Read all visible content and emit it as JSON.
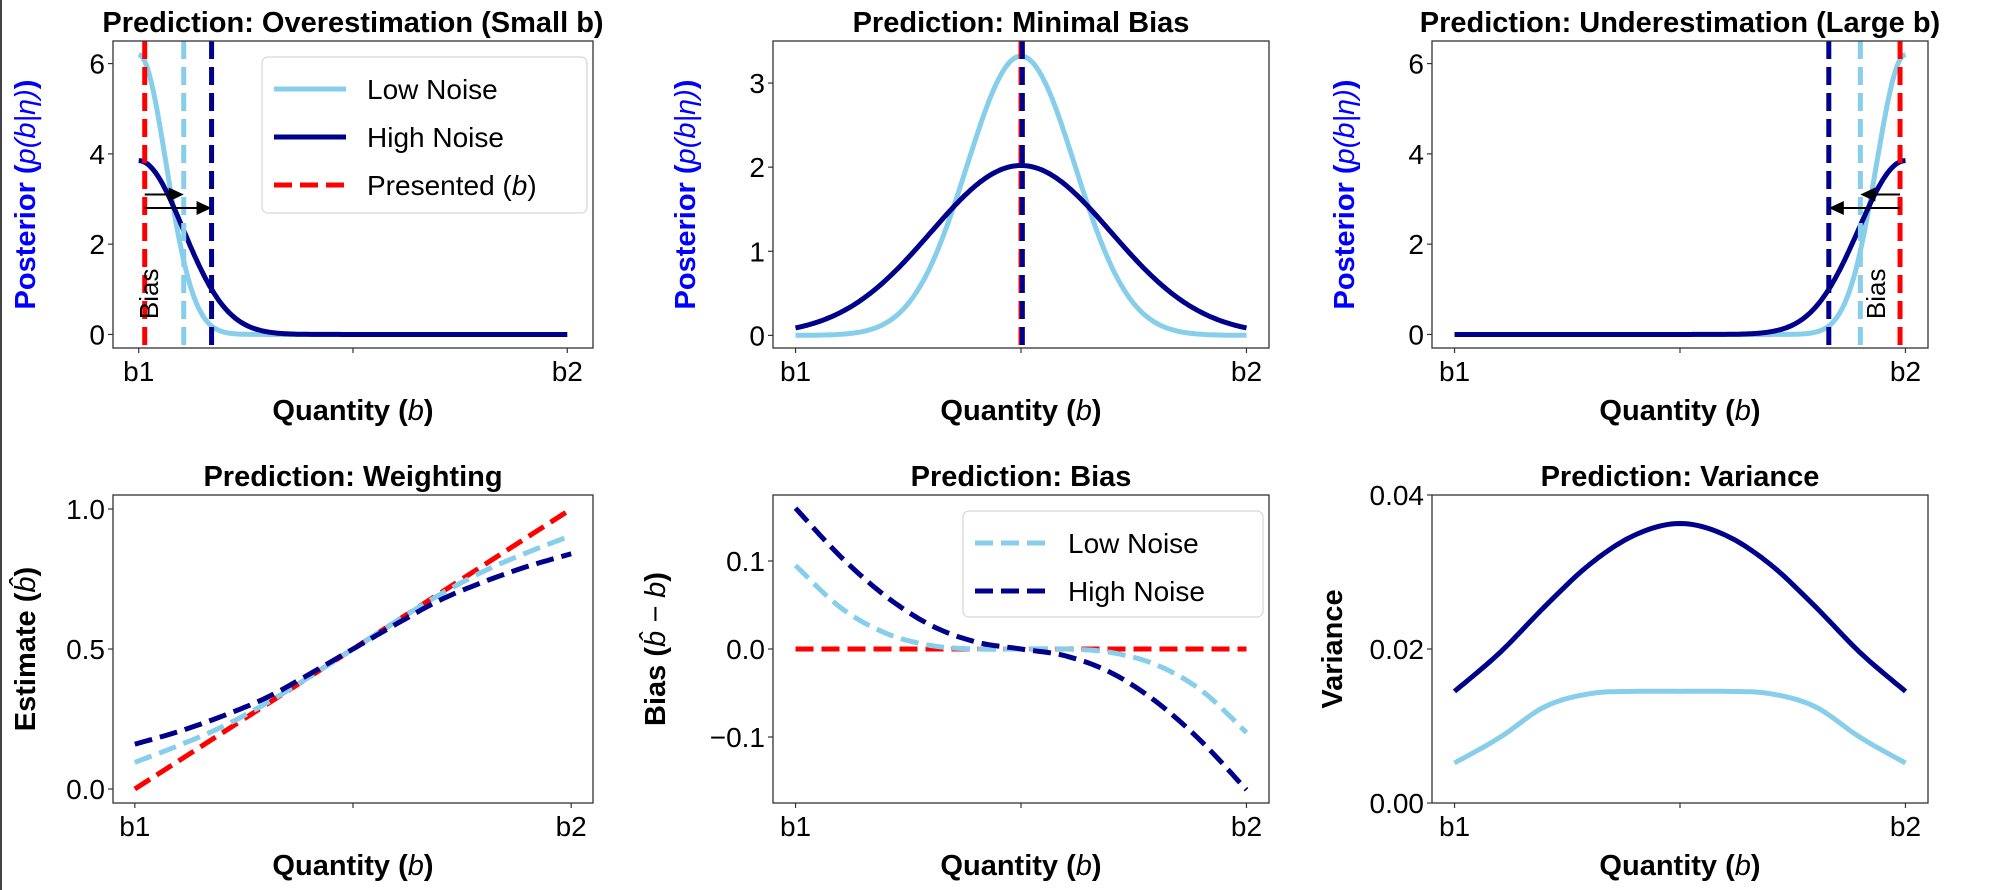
{
  "colors": {
    "low_noise": "#87CEEB",
    "high_noise": "#00008B",
    "presented": "#FF0000",
    "ylabel_posterior": "#0000FF",
    "text": "#000000"
  },
  "chart_data": [
    {
      "id": "overestimation",
      "type": "line",
      "title": "Prediction: Overestimation (Small b)",
      "xlabel": "Quantity (b)",
      "ylabel": "Posterior (p(b|η))",
      "x_tick_labels": [
        "b1",
        "",
        "b2"
      ],
      "x_ticks": [
        0,
        0.5,
        1
      ],
      "xlim": [
        -0.06,
        1.06
      ],
      "ylim": [
        -0.3,
        6.5
      ],
      "y_ticks": [
        0,
        2,
        4,
        6
      ],
      "y_tick_labels": [
        "0",
        "2",
        "4",
        "6"
      ],
      "legend": {
        "position": "top-right",
        "entries": [
          "Low Noise",
          "High Noise",
          "Presented (b)"
        ]
      },
      "series": [
        {
          "name": "Low Noise",
          "style": "solid",
          "color_key": "low_noise",
          "kind": "halfgauss",
          "center": 0,
          "peak": 6.2,
          "sigma": 0.0643,
          "side": "right"
        },
        {
          "name": "High Noise",
          "style": "solid",
          "color_key": "high_noise",
          "kind": "halfgauss",
          "center": 0,
          "peak": 3.85,
          "sigma": 0.1036,
          "side": "right"
        }
      ],
      "vlines": [
        {
          "name": "Presented (b)",
          "x": 0.014,
          "color_key": "presented"
        },
        {
          "name": "Low Noise estimate",
          "x": 0.105,
          "color_key": "low_noise"
        },
        {
          "name": "High Noise estimate",
          "x": 0.17,
          "color_key": "high_noise"
        }
      ],
      "arrows": [
        {
          "from": 0.014,
          "to": 0.105,
          "y": 3.1
        },
        {
          "from": 0.014,
          "to": 0.17,
          "y": 2.8
        }
      ],
      "annotation": {
        "text": "Bias",
        "x": 0.045,
        "y": 0.9,
        "rotation": -90
      }
    },
    {
      "id": "minimal-bias",
      "type": "line",
      "title": "Prediction: Minimal Bias",
      "xlabel": "Quantity (b)",
      "ylabel": "Posterior (p(b|η))",
      "x_tick_labels": [
        "b1",
        "",
        "b2"
      ],
      "x_ticks": [
        0,
        0.5,
        1
      ],
      "xlim": [
        -0.05,
        1.05
      ],
      "ylim": [
        -0.15,
        3.5
      ],
      "y_ticks": [
        0,
        1,
        2,
        3
      ],
      "y_tick_labels": [
        "0",
        "1",
        "2",
        "3"
      ],
      "series": [
        {
          "name": "Low Noise",
          "style": "solid",
          "color_key": "low_noise",
          "kind": "gauss",
          "center": 0.5,
          "peak": 3.32,
          "sigma": 0.12
        },
        {
          "name": "High Noise",
          "style": "solid",
          "color_key": "high_noise",
          "kind": "gauss",
          "center": 0.5,
          "peak": 2.02,
          "sigma": 0.2
        }
      ],
      "vlines": [
        {
          "name": "Presented (b)",
          "x": 0.5,
          "color_key": "presented"
        },
        {
          "name": "High Noise estimate",
          "x": 0.503,
          "color_key": "high_noise"
        }
      ]
    },
    {
      "id": "underestimation",
      "type": "line",
      "title": "Prediction: Underestimation (Large b)",
      "xlabel": "Quantity (b)",
      "ylabel": "Posterior (p(b|η))",
      "x_tick_labels": [
        "b1",
        "",
        "b2"
      ],
      "x_ticks": [
        0,
        0.5,
        1
      ],
      "xlim": [
        -0.05,
        1.05
      ],
      "ylim": [
        -0.3,
        6.5
      ],
      "y_ticks": [
        0,
        2,
        4,
        6
      ],
      "y_tick_labels": [
        "0",
        "2",
        "4",
        "6"
      ],
      "series": [
        {
          "name": "Low Noise",
          "style": "solid",
          "color_key": "low_noise",
          "kind": "halfgauss",
          "center": 1,
          "peak": 6.2,
          "sigma": 0.0643,
          "side": "left"
        },
        {
          "name": "High Noise",
          "style": "solid",
          "color_key": "high_noise",
          "kind": "halfgauss",
          "center": 1,
          "peak": 3.85,
          "sigma": 0.1036,
          "side": "left"
        }
      ],
      "vlines": [
        {
          "name": "Presented (b)",
          "x": 0.988,
          "color_key": "presented"
        },
        {
          "name": "Low Noise estimate",
          "x": 0.9,
          "color_key": "low_noise"
        },
        {
          "name": "High Noise estimate",
          "x": 0.83,
          "color_key": "high_noise"
        }
      ],
      "arrows": [
        {
          "from": 0.988,
          "to": 0.9,
          "y": 3.1
        },
        {
          "from": 0.988,
          "to": 0.83,
          "y": 2.8
        }
      ],
      "annotation": {
        "text": "Bias",
        "x": 0.955,
        "y": 0.9,
        "rotation": -90
      }
    },
    {
      "id": "weighting",
      "type": "line",
      "title": "Prediction: Weighting",
      "xlabel": "Quantity (b)",
      "ylabel": "Estimate (b̂)",
      "x_tick_labels": [
        "b1",
        "",
        "b2"
      ],
      "x_ticks": [
        0,
        0.5,
        1
      ],
      "xlim": [
        -0.05,
        1.05
      ],
      "ylim": [
        -0.05,
        1.05
      ],
      "y_ticks": [
        0,
        0.5,
        1.0
      ],
      "y_tick_labels": [
        "0.0",
        "0.5",
        "1.0"
      ],
      "series": [
        {
          "name": "Presented",
          "style": "dashed",
          "color_key": "presented",
          "x": [
            0,
            1
          ],
          "y": [
            0,
            1
          ]
        },
        {
          "name": "Low Noise",
          "style": "dashed",
          "color_key": "low_noise",
          "x": [
            0,
            0.1,
            0.2,
            0.3,
            0.4,
            0.5,
            0.6,
            0.7,
            0.8,
            0.9,
            1.0
          ],
          "y": [
            0.095,
            0.155,
            0.222,
            0.305,
            0.4,
            0.5,
            0.6,
            0.695,
            0.778,
            0.845,
            0.905
          ]
        },
        {
          "name": "High Noise",
          "style": "dashed",
          "color_key": "high_noise",
          "x": [
            0,
            0.1,
            0.2,
            0.3,
            0.4,
            0.5,
            0.6,
            0.7,
            0.8,
            0.9,
            1.0
          ],
          "y": [
            0.16,
            0.205,
            0.26,
            0.325,
            0.41,
            0.5,
            0.59,
            0.675,
            0.74,
            0.795,
            0.84
          ]
        }
      ]
    },
    {
      "id": "bias",
      "type": "line",
      "title": "Prediction: Bias",
      "xlabel": "Quantity (b)",
      "ylabel": "Bias (b̂ − b)",
      "x_tick_labels": [
        "b1",
        "",
        "b2"
      ],
      "x_ticks": [
        0,
        0.5,
        1
      ],
      "xlim": [
        -0.05,
        1.05
      ],
      "ylim": [
        -0.175,
        0.175
      ],
      "y_ticks": [
        -0.1,
        0.0,
        0.1
      ],
      "y_tick_labels": [
        "−0.1",
        "0.0",
        "0.1"
      ],
      "legend": {
        "position": "top-right",
        "entries": [
          "Low Noise",
          "High Noise"
        ]
      },
      "series": [
        {
          "name": "Zero",
          "style": "dashed",
          "color_key": "presented",
          "x": [
            0,
            1
          ],
          "y": [
            0,
            0
          ]
        },
        {
          "name": "Low Noise",
          "style": "dashed",
          "color_key": "low_noise",
          "x": [
            0,
            0.1,
            0.2,
            0.3,
            0.4,
            0.5,
            0.6,
            0.7,
            0.8,
            0.9,
            1.0
          ],
          "y": [
            0.095,
            0.047,
            0.018,
            0.004,
            0.0,
            0.0,
            0.0,
            -0.004,
            -0.018,
            -0.047,
            -0.095
          ]
        },
        {
          "name": "High Noise",
          "style": "dashed",
          "color_key": "high_noise",
          "x": [
            0,
            0.1,
            0.2,
            0.3,
            0.4,
            0.5,
            0.6,
            0.7,
            0.8,
            0.9,
            1.0
          ],
          "y": [
            0.16,
            0.105,
            0.06,
            0.027,
            0.008,
            0.0,
            -0.008,
            -0.027,
            -0.06,
            -0.105,
            -0.16
          ]
        }
      ]
    },
    {
      "id": "variance",
      "type": "line",
      "title": "Prediction: Variance",
      "xlabel": "Quantity (b)",
      "ylabel": "Variance",
      "x_tick_labels": [
        "b1",
        "",
        "b2"
      ],
      "x_ticks": [
        0,
        0.5,
        1
      ],
      "xlim": [
        -0.05,
        1.05
      ],
      "ylim": [
        0.0,
        0.04
      ],
      "y_ticks": [
        0.0,
        0.02,
        0.04
      ],
      "y_tick_labels": [
        "0.00",
        "0.02",
        "0.04"
      ],
      "series": [
        {
          "name": "High Noise",
          "style": "solid",
          "color_key": "high_noise",
          "x": [
            0,
            0.1,
            0.2,
            0.3,
            0.4,
            0.5,
            0.6,
            0.7,
            0.8,
            0.9,
            1.0
          ],
          "y": [
            0.0145,
            0.0195,
            0.0255,
            0.031,
            0.0348,
            0.0363,
            0.0348,
            0.031,
            0.0255,
            0.0195,
            0.0145
          ]
        },
        {
          "name": "Low Noise",
          "style": "solid",
          "color_key": "low_noise",
          "x": [
            0,
            0.1,
            0.2,
            0.3,
            0.4,
            0.5,
            0.6,
            0.7,
            0.8,
            0.9,
            1.0
          ],
          "y": [
            0.0052,
            0.0085,
            0.0125,
            0.0142,
            0.0145,
            0.0145,
            0.0145,
            0.0142,
            0.0125,
            0.0085,
            0.0052
          ]
        }
      ]
    }
  ]
}
